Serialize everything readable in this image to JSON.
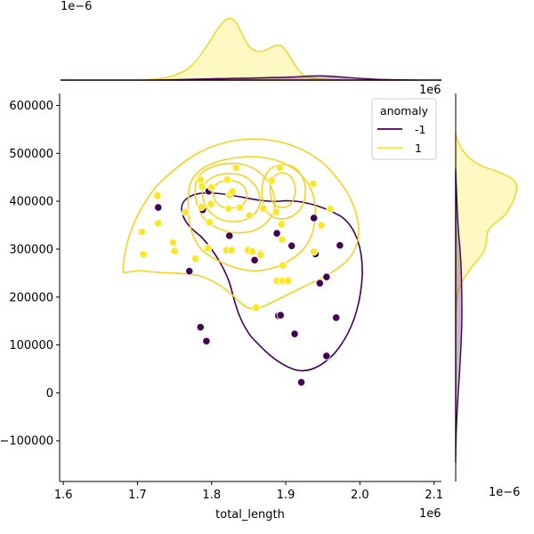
{
  "chart_data": {
    "type": "scatter",
    "title": "",
    "xlabel": "total_length",
    "ylabel": "",
    "x_offset_label": "1e6",
    "y_offset_label": "1e6",
    "top_marginal_offset_label": "1e−6",
    "right_marginal_offset_label": "1e−6",
    "xlim": [
      1.595,
      2.11
    ],
    "ylim": [
      -185000,
      625000
    ],
    "x_ticks": [
      1.6,
      1.7,
      1.8,
      1.9,
      2.0,
      2.1
    ],
    "x_tick_labels": [
      "1.6",
      "1.7",
      "1.8",
      "1.9",
      "2.0",
      "2.1"
    ],
    "y_ticks": [
      -100000,
      0,
      100000,
      200000,
      300000,
      400000,
      500000,
      600000
    ],
    "y_tick_labels": [
      "−100000",
      "0",
      "100000",
      "200000",
      "300000",
      "400000",
      "500000",
      "600000"
    ],
    "grid": false,
    "legend": {
      "title": "anomaly",
      "placement": "top-right",
      "entries": [
        {
          "label": "-1",
          "color": "#440154"
        },
        {
          "label": "1",
          "color": "#fde725"
        }
      ]
    },
    "colors": {
      "anomaly": "#440154",
      "normal": "#fde725",
      "contour_normal": "#f3d31f"
    },
    "series": [
      {
        "name": "-1",
        "points": [
          [
            1.728,
            387000
          ],
          [
            1.796,
            421000
          ],
          [
            1.788,
            382000
          ],
          [
            1.824,
            328000
          ],
          [
            1.77,
            254000
          ],
          [
            1.785,
            137000
          ],
          [
            1.793,
            108000
          ],
          [
            1.858,
            277000
          ],
          [
            1.888,
            333000
          ],
          [
            1.89,
            161000
          ],
          [
            1.893,
            162000
          ],
          [
            1.908,
            307000
          ],
          [
            1.912,
            123000
          ],
          [
            1.921,
            22000
          ],
          [
            1.938,
            365000
          ],
          [
            1.94,
            290000
          ],
          [
            1.946,
            229000
          ],
          [
            1.955,
            242000
          ],
          [
            1.955,
            77000
          ],
          [
            1.968,
            157000
          ],
          [
            1.973,
            308000
          ]
        ]
      },
      {
        "name": "1",
        "points": [
          [
            1.706,
            336000
          ],
          [
            1.708,
            289000
          ],
          [
            1.727,
            412000
          ],
          [
            1.728,
            354000
          ],
          [
            1.748,
            314000
          ],
          [
            1.75,
            296000
          ],
          [
            1.765,
            377000
          ],
          [
            1.778,
            280000
          ],
          [
            1.785,
            445000
          ],
          [
            1.787,
            431000
          ],
          [
            1.786,
            388000
          ],
          [
            1.795,
            302000
          ],
          [
            1.799,
            394000
          ],
          [
            1.8,
            429000
          ],
          [
            1.797,
            356000
          ],
          [
            1.821,
            445000
          ],
          [
            1.824,
            413000
          ],
          [
            1.828,
            420000
          ],
          [
            1.823,
            384000
          ],
          [
            1.833,
            470000
          ],
          [
            1.838,
            387000
          ],
          [
            1.82,
            298000
          ],
          [
            1.827,
            298000
          ],
          [
            1.849,
            298000
          ],
          [
            1.851,
            370000
          ],
          [
            1.855,
            295000
          ],
          [
            1.86,
            178000
          ],
          [
            1.866,
            292000
          ],
          [
            1.866,
            288000
          ],
          [
            1.87,
            385000
          ],
          [
            1.881,
            443000
          ],
          [
            1.887,
            378000
          ],
          [
            1.892,
            470000
          ],
          [
            1.894,
            352000
          ],
          [
            1.895,
            320000
          ],
          [
            1.896,
            266000
          ],
          [
            1.888,
            234000
          ],
          [
            1.895,
            234000
          ],
          [
            1.903,
            234000
          ],
          [
            1.937,
            436000
          ],
          [
            1.938,
            295000
          ],
          [
            1.948,
            350000
          ],
          [
            1.96,
            384000
          ]
        ]
      }
    ]
  }
}
